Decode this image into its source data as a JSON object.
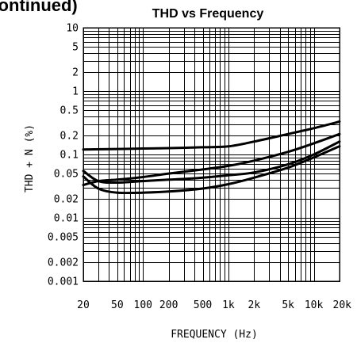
{
  "page": {
    "section_heading": "(continued)"
  },
  "chart_data": {
    "type": "line",
    "title": "THD vs Frequency",
    "xlabel": "FREQUENCY (Hz)",
    "ylabel": "THD + N (%)",
    "x_scale": "log",
    "y_scale": "log",
    "xlim": [
      20,
      20000
    ],
    "ylim": [
      0.001,
      10
    ],
    "grid": true,
    "x_ticks": [
      {
        "value": 20,
        "label": "20"
      },
      {
        "value": 50,
        "label": "50"
      },
      {
        "value": 100,
        "label": "100"
      },
      {
        "value": 200,
        "label": "200"
      },
      {
        "value": 500,
        "label": "500"
      },
      {
        "value": 1000,
        "label": "1k"
      },
      {
        "value": 2000,
        "label": "2k"
      },
      {
        "value": 5000,
        "label": "5k"
      },
      {
        "value": 10000,
        "label": "10k"
      },
      {
        "value": 20000,
        "label": "20k"
      }
    ],
    "y_ticks": [
      {
        "value": 10,
        "label": "10"
      },
      {
        "value": 5,
        "label": "5"
      },
      {
        "value": 2,
        "label": "2"
      },
      {
        "value": 1,
        "label": "1"
      },
      {
        "value": 0.5,
        "label": "0.5"
      },
      {
        "value": 0.2,
        "label": "0.2"
      },
      {
        "value": 0.1,
        "label": "0.1"
      },
      {
        "value": 0.05,
        "label": "0.05"
      },
      {
        "value": 0.02,
        "label": "0.02"
      },
      {
        "value": 0.01,
        "label": "0.01"
      },
      {
        "value": 0.005,
        "label": "0.005"
      },
      {
        "value": 0.002,
        "label": "0.002"
      },
      {
        "value": 0.001,
        "label": "0.001"
      }
    ],
    "series": [
      {
        "x": [
          20,
          50,
          100,
          200,
          500,
          1000,
          2000,
          5000,
          10000,
          20000
        ],
        "y": [
          0.12,
          0.122,
          0.124,
          0.126,
          0.13,
          0.134,
          0.16,
          0.21,
          0.26,
          0.33
        ]
      },
      {
        "x": [
          20,
          30,
          50,
          100,
          200,
          500,
          1000,
          2000,
          5000,
          10000,
          20000
        ],
        "y": [
          0.033,
          0.038,
          0.04,
          0.044,
          0.05,
          0.058,
          0.066,
          0.08,
          0.11,
          0.15,
          0.21
        ]
      },
      {
        "x": [
          20,
          30,
          50,
          100,
          200,
          500,
          1000,
          2000,
          5000,
          10000,
          20000
        ],
        "y": [
          0.055,
          0.038,
          0.036,
          0.038,
          0.04,
          0.043,
          0.047,
          0.052,
          0.07,
          0.1,
          0.16
        ]
      },
      {
        "x": [
          20,
          30,
          50,
          100,
          200,
          500,
          1000,
          2000,
          5000,
          10000,
          20000
        ],
        "y": [
          0.045,
          0.029,
          0.025,
          0.025,
          0.026,
          0.029,
          0.034,
          0.043,
          0.062,
          0.09,
          0.135
        ]
      }
    ]
  }
}
